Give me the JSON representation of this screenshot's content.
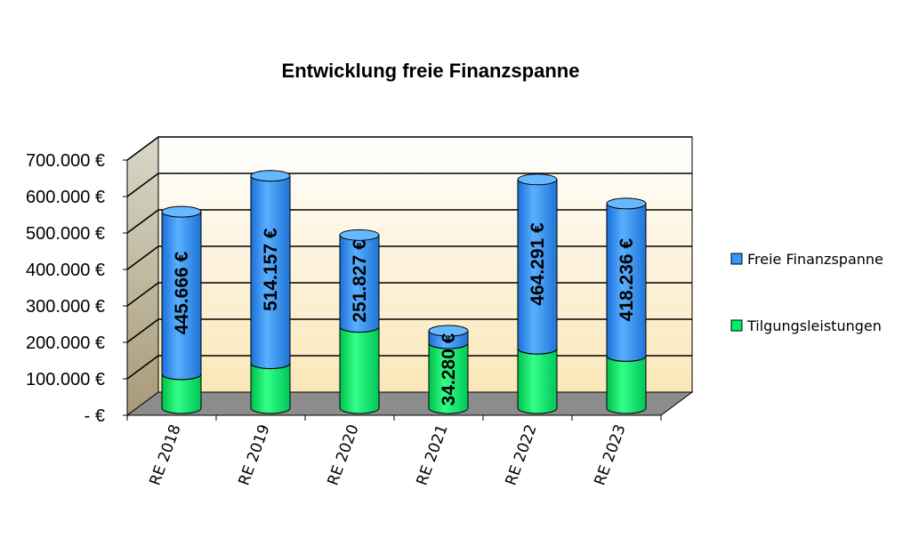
{
  "chart_data": {
    "type": "bar",
    "stacked": true,
    "title": "Entwicklung freie Finanzspanne",
    "categories": [
      "RE 2018",
      "RE 2019",
      "RE 2020",
      "RE 2021",
      "RE 2022",
      "RE 2023"
    ],
    "series": [
      {
        "name": "Tilgungsleistungen",
        "color": "#00ee66",
        "values": [
          93000,
          123000,
          223000,
          178000,
          163000,
          143000
        ]
      },
      {
        "name": "Freie Finanzspanne",
        "color": "#3399ff",
        "values": [
          445666,
          514157,
          251827,
          34280,
          464291,
          418236
        ],
        "data_labels": [
          "445.666 €",
          "514.157 €",
          "251.827 €",
          "34.280 €",
          "464.291 €",
          "418.236 €"
        ]
      }
    ],
    "y_tick_labels": [
      "-   €",
      "100.000 €",
      "200.000 €",
      "300.000 €",
      "400.000 €",
      "500.000 €",
      "600.000 €",
      "700.000 €"
    ],
    "ylim": [
      0,
      700000
    ],
    "legend": "right",
    "grid": true
  }
}
